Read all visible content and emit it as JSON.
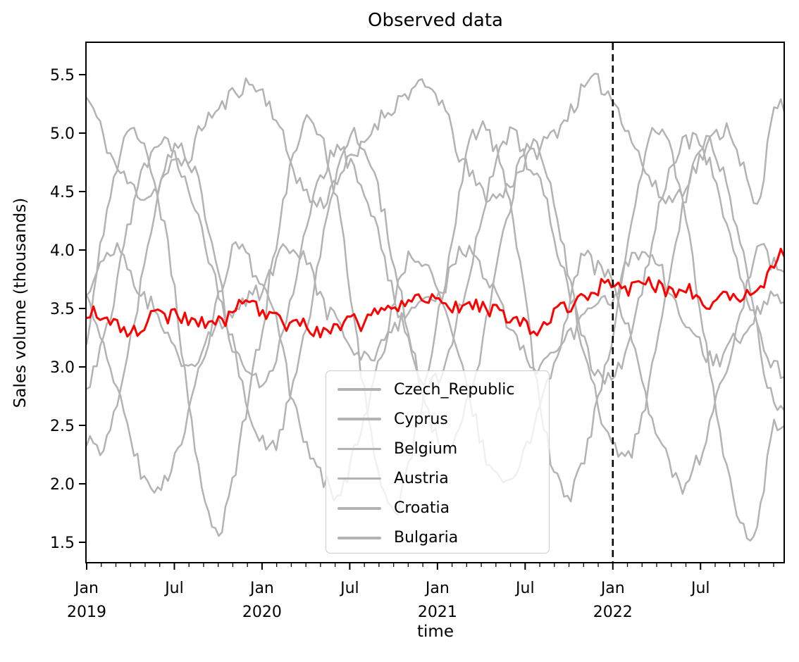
{
  "page": {
    "background": "#ffffff"
  },
  "chart_data": {
    "type": "line",
    "title": "Observed data",
    "xlabel": "time",
    "ylabel": "Sales volume (thousands)",
    "ylim": [
      1.33,
      5.78
    ],
    "yticks": [
      1.5,
      2.0,
      2.5,
      3.0,
      3.5,
      4.0,
      4.5,
      5.0,
      5.5
    ],
    "x_range": {
      "start": "Jan 2019",
      "end": "Dec 2022",
      "resolution": "weekly",
      "minor_ticks": "monthly"
    },
    "x_major_ticks": [
      {
        "month": "Jan",
        "year": "2019",
        "month_index": 0
      },
      {
        "month": "Jul",
        "year": "",
        "month_index": 6
      },
      {
        "month": "Jan",
        "year": "2020",
        "month_index": 12
      },
      {
        "month": "Jul",
        "year": "",
        "month_index": 18
      },
      {
        "month": "Jan",
        "year": "2021",
        "month_index": 24
      },
      {
        "month": "Jul",
        "year": "",
        "month_index": 30
      },
      {
        "month": "Jan",
        "year": "2022",
        "month_index": 36
      },
      {
        "month": "Jul",
        "year": "",
        "month_index": 42
      }
    ],
    "grid": false,
    "colors": {
      "series_gray": "#b3b3b3",
      "highlight_red": "#ff0000",
      "axis": "#000000",
      "legend_border": "#cccccc"
    },
    "vline": {
      "at": "Jan 2022",
      "month_index": 36,
      "style": "dashed",
      "color": "#000000"
    },
    "legend": {
      "position": "lower center",
      "entries": [
        "Czech_Republic",
        "Cyprus",
        "Belgium",
        "Austria",
        "Croatia",
        "Bulgaria"
      ]
    },
    "month_count": 48,
    "series": [
      {
        "name": "Czech_Republic",
        "color": "#b3b3b3",
        "in_legend": true,
        "highlight": false,
        "monthly_values": [
          5.3,
          5.05,
          4.7,
          4.5,
          4.42,
          4.55,
          4.7,
          4.85,
          5.05,
          5.2,
          5.38,
          5.45,
          5.35,
          5.1,
          4.8,
          4.55,
          4.45,
          4.6,
          4.75,
          4.9,
          5.1,
          5.28,
          5.4,
          5.42,
          5.3,
          5.0,
          4.7,
          4.48,
          4.4,
          4.58,
          4.72,
          4.88,
          5.05,
          5.22,
          5.38,
          5.4,
          5.28,
          5.02,
          4.72,
          4.5,
          4.45,
          4.6,
          4.78,
          4.92,
          5.0,
          4.7,
          4.4,
          5.28
        ]
      },
      {
        "name": "Cyprus",
        "color": "#b3b3b3",
        "in_legend": true,
        "highlight": false,
        "monthly_values": [
          3.25,
          4.05,
          4.7,
          5.05,
          4.9,
          4.4,
          3.6,
          2.6,
          1.95,
          1.6,
          2.1,
          2.7,
          3.3,
          4.1,
          4.75,
          5.1,
          4.95,
          4.45,
          3.65,
          2.7,
          2.0,
          1.7,
          2.15,
          2.75,
          3.35,
          4.05,
          4.8,
          5.05,
          4.9,
          4.35,
          3.55,
          2.65,
          2.1,
          1.9,
          2.2,
          2.8,
          3.3,
          4.0,
          4.7,
          5.0,
          4.85,
          4.3,
          3.5,
          2.6,
          2.0,
          1.62,
          1.7,
          2.55
        ]
      },
      {
        "name": "Belgium",
        "color": "#b3b3b3",
        "in_legend": true,
        "highlight": false,
        "monthly_values": [
          2.4,
          2.3,
          2.7,
          3.25,
          3.9,
          4.5,
          4.9,
          4.85,
          4.45,
          3.85,
          3.2,
          2.7,
          2.45,
          2.35,
          2.75,
          3.3,
          3.95,
          4.55,
          4.95,
          4.9,
          4.5,
          3.9,
          3.25,
          2.75,
          2.4,
          2.3,
          2.7,
          3.2,
          3.85,
          4.45,
          4.85,
          4.8,
          4.4,
          3.8,
          3.15,
          2.65,
          2.35,
          2.25,
          2.65,
          3.2,
          3.9,
          4.5,
          4.9,
          4.85,
          4.45,
          3.85,
          3.2,
          2.7
        ]
      },
      {
        "name": "Austria",
        "color": "#b3b3b3",
        "in_legend": true,
        "highlight": false,
        "monthly_values": [
          2.9,
          3.2,
          3.65,
          4.25,
          4.7,
          4.92,
          4.8,
          4.55,
          4.15,
          3.7,
          3.25,
          2.95,
          2.85,
          3.15,
          3.6,
          4.2,
          4.65,
          4.88,
          4.78,
          4.52,
          4.1,
          3.65,
          3.2,
          2.9,
          2.9,
          3.22,
          3.68,
          4.28,
          4.72,
          4.95,
          4.82,
          4.55,
          4.12,
          3.68,
          3.22,
          2.92,
          2.88,
          3.18,
          3.62,
          4.22,
          4.68,
          4.9,
          4.8,
          4.55,
          4.15,
          3.72,
          3.28,
          3.0
        ]
      },
      {
        "name": "Croatia",
        "color": "#b3b3b3",
        "in_legend": true,
        "highlight": false,
        "monthly_values": [
          3.6,
          3.3,
          2.85,
          2.4,
          2.1,
          2.0,
          2.25,
          2.65,
          3.1,
          3.55,
          3.95,
          3.9,
          3.7,
          3.35,
          2.8,
          2.35,
          2.05,
          1.95,
          2.2,
          2.6,
          3.05,
          3.5,
          3.9,
          3.85,
          3.65,
          3.3,
          2.82,
          2.38,
          2.08,
          1.98,
          2.22,
          2.62,
          3.08,
          3.52,
          3.92,
          3.88,
          3.68,
          3.32,
          2.85,
          2.4,
          2.1,
          2.0,
          2.25,
          2.65,
          3.1,
          3.55,
          3.95,
          3.9
        ]
      },
      {
        "name": "Bulgaria",
        "color": "#b3b3b3",
        "in_legend": true,
        "highlight": false,
        "monthly_values": [
          3.6,
          3.88,
          4.0,
          3.85,
          3.6,
          3.35,
          3.15,
          3.05,
          3.15,
          3.3,
          3.45,
          3.55,
          3.62,
          3.9,
          4.02,
          3.88,
          3.62,
          3.38,
          3.18,
          3.08,
          3.18,
          3.32,
          3.48,
          3.58,
          3.58,
          3.85,
          3.98,
          3.84,
          3.58,
          3.34,
          3.14,
          3.04,
          3.14,
          3.28,
          3.44,
          3.54,
          3.6,
          3.88,
          4.0,
          3.86,
          3.6,
          3.36,
          3.16,
          3.06,
          3.16,
          3.3,
          3.46,
          3.58
        ]
      },
      {
        "name": "highlighted_series",
        "color": "#ff0000",
        "in_legend": false,
        "highlight": true,
        "monthly_values": [
          3.5,
          3.45,
          3.38,
          3.35,
          3.4,
          3.46,
          3.42,
          3.36,
          3.34,
          3.4,
          3.5,
          3.56,
          3.5,
          3.44,
          3.38,
          3.34,
          3.3,
          3.36,
          3.42,
          3.38,
          3.44,
          3.48,
          3.56,
          3.58,
          3.56,
          3.5,
          3.55,
          3.48,
          3.44,
          3.4,
          3.34,
          3.3,
          3.46,
          3.52,
          3.58,
          3.66,
          3.76,
          3.7,
          3.72,
          3.66,
          3.6,
          3.66,
          3.58,
          3.54,
          3.66,
          3.6,
          3.72,
          3.9
        ]
      }
    ]
  }
}
